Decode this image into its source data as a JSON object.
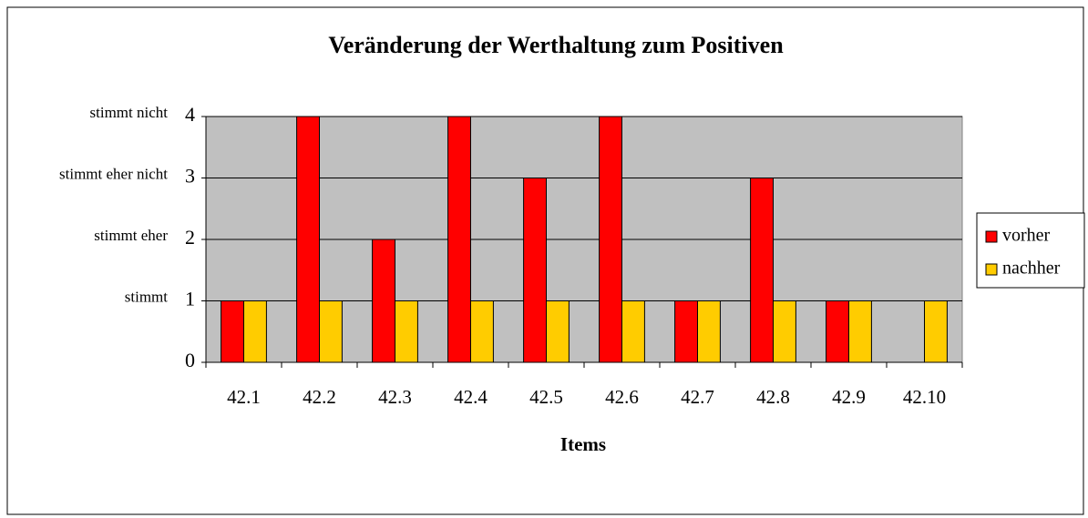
{
  "chart_data": {
    "type": "bar",
    "title": "Veränderung der Werthaltung zum Positiven",
    "x_label": "Items",
    "categories": [
      "42.1",
      "42.2",
      "42.3",
      "42.4",
      "42.5",
      "42.6",
      "42.7",
      "42.8",
      "42.9",
      "42.10"
    ],
    "series": [
      {
        "name": "vorher",
        "color": "#ff0000",
        "values": [
          1,
          4,
          2,
          4,
          3,
          4,
          1,
          3,
          1,
          0
        ]
      },
      {
        "name": "nachher",
        "color": "#ffcc00",
        "values": [
          1,
          1,
          1,
          1,
          1,
          1,
          1,
          1,
          1,
          1
        ]
      }
    ],
    "ylim": [
      0,
      4
    ],
    "yticks": [
      0,
      1,
      2,
      3,
      4
    ],
    "ytick_descriptions": [
      {
        "value": 1,
        "label": "stimmt"
      },
      {
        "value": 2,
        "label": "stimmt eher"
      },
      {
        "value": 3,
        "label": "stimmt eher nicht"
      },
      {
        "value": 4,
        "label": "stimmt nicht"
      }
    ],
    "grid": true,
    "legend": "right",
    "plot_background": "#c0c0c0"
  }
}
